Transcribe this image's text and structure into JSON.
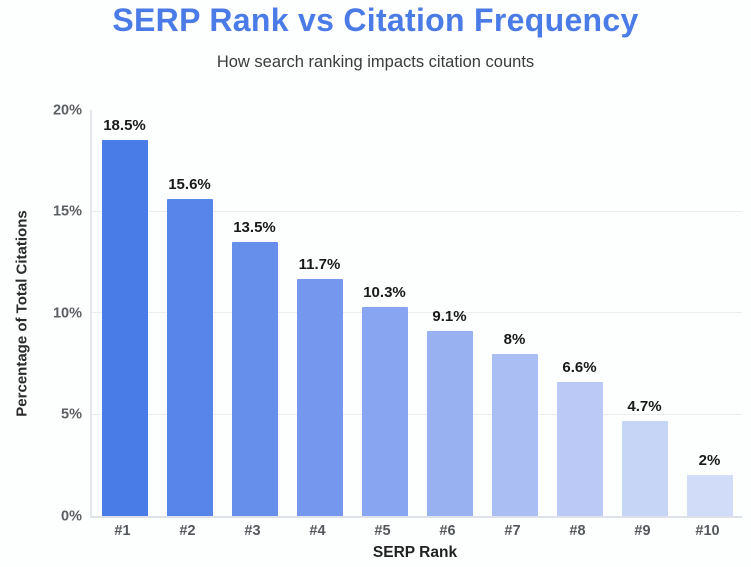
{
  "chart_data": {
    "type": "bar",
    "title": "SERP Rank vs Citation Frequency",
    "subtitle": "How search ranking impacts citation counts",
    "categories": [
      "#1",
      "#2",
      "#3",
      "#4",
      "#5",
      "#6",
      "#7",
      "#8",
      "#9",
      "#10"
    ],
    "values": [
      18.5,
      15.6,
      13.5,
      11.7,
      10.3,
      9.1,
      8,
      6.6,
      4.7,
      2
    ],
    "value_labels": [
      "18.5%",
      "15.6%",
      "13.5%",
      "11.7%",
      "10.3%",
      "9.1%",
      "8%",
      "6.6%",
      "4.7%",
      "2%"
    ],
    "xlabel": "SERP Rank",
    "ylabel": "Percentage of Total Citations",
    "ylim": [
      0,
      20
    ],
    "yticks": [
      0,
      5,
      10,
      15,
      20
    ],
    "ytick_labels": [
      "0%",
      "5%",
      "10%",
      "15%",
      "20%"
    ],
    "gridlines": [
      5,
      10,
      15
    ],
    "grid": "horizontal-faint",
    "legend": "none",
    "bar_colors": [
      "#4a7ce8",
      "#5885ea",
      "#668fec",
      "#7598ee",
      "#87a5f0",
      "#98b1f1",
      "#aabef3",
      "#bac9f5",
      "#c6d4f6",
      "#d0dcf8"
    ],
    "colors": {
      "title": "#4a7be6",
      "subtitle": "#3b3b3b",
      "axis_line": "#dde1e8",
      "gridline": "#ebedf0",
      "tick_label": "#5c5f63",
      "value_label": "#191919",
      "background": "#fdfefe"
    }
  }
}
